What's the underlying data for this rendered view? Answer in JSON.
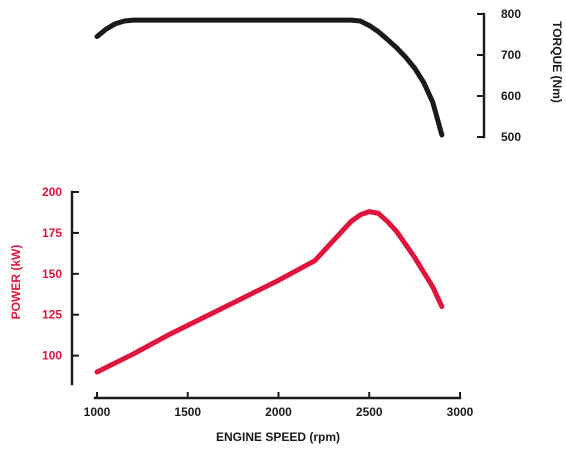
{
  "colors": {
    "torque": "#1a1a1a",
    "power": "#e0143c",
    "axis": "#1a1a1a",
    "text": "#1a1a1a"
  },
  "chart_data": [
    {
      "type": "line",
      "title": "",
      "xlabel": "ENGINE SPEED (rpm)",
      "ylabel": "TORQUE (Nm)",
      "xlim": [
        1000,
        3000
      ],
      "ylim": [
        500,
        800
      ],
      "xticks": [
        1000,
        1500,
        2000,
        2500,
        3000
      ],
      "yticks": [
        500,
        600,
        700,
        800
      ],
      "y_axis_side": "right",
      "grid": false,
      "legend": "none",
      "series": [
        {
          "x": [
            1000,
            1050,
            1100,
            1150,
            1200,
            1300,
            1400,
            1500,
            1600,
            1700,
            1800,
            1900,
            2000,
            2100,
            2200,
            2300,
            2400,
            2450,
            2500,
            2550,
            2600,
            2650,
            2700,
            2750,
            2800,
            2850,
            2900
          ],
          "values": [
            745,
            763,
            776,
            783,
            785,
            785,
            785,
            785,
            785,
            785,
            785,
            785,
            785,
            785,
            785,
            785,
            785,
            783,
            772,
            757,
            738,
            718,
            695,
            668,
            633,
            585,
            505
          ]
        }
      ]
    },
    {
      "type": "line",
      "title": "",
      "xlabel": "ENGINE SPEED (rpm)",
      "ylabel": "POWER (kW)",
      "xlim": [
        1000,
        3000
      ],
      "ylim": [
        90,
        200
      ],
      "xticks": [
        1000,
        1500,
        2000,
        2500,
        3000
      ],
      "yticks": [
        100,
        125,
        150,
        175,
        200
      ],
      "y_axis_side": "left",
      "grid": false,
      "legend": "none",
      "series": [
        {
          "x": [
            1000,
            1200,
            1400,
            1600,
            1800,
            2000,
            2200,
            2400,
            2450,
            2500,
            2550,
            2600,
            2650,
            2700,
            2750,
            2800,
            2850,
            2900
          ],
          "values": [
            90,
            101,
            113,
            124,
            135,
            146,
            158,
            182,
            186,
            188,
            187,
            182,
            176,
            168,
            160,
            151,
            142,
            130
          ]
        }
      ]
    }
  ]
}
